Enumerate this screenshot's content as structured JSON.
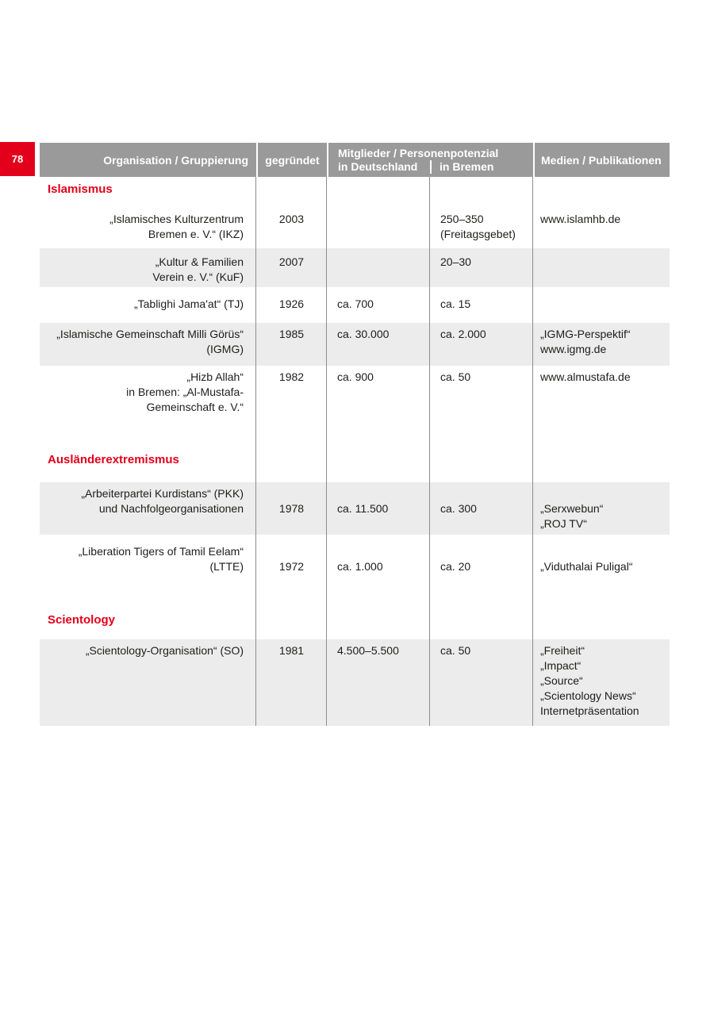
{
  "page_number": "78",
  "colors": {
    "accent_red": "#e3001b",
    "header_gray": "#9a9a9a",
    "row_shading": "#ececec",
    "body_text": "#1d1d1b"
  },
  "table": {
    "headers": {
      "organisation": "Organisation / Gruppierung",
      "founded": "gegründet",
      "members_group": "Mitglieder / Personenpotenzial",
      "members_germany": "in Deutschland",
      "members_bremen": "in Bremen",
      "media": "Medien / Publikationen"
    },
    "sections": [
      {
        "title": "Islamismus",
        "rows": [
          {
            "org": [
              "„Islamisches Kulturzentrum",
              "Bremen e. V.“ (IKZ)"
            ],
            "founded": "2003",
            "germany": "",
            "bremen": [
              "250–350",
              "(Freitagsgebet)"
            ],
            "media": [
              "www.islamhb.de"
            ]
          },
          {
            "org": [
              "„Kultur & Familien",
              "Verein e. V.“ (KuF)"
            ],
            "founded": "2007",
            "germany": "",
            "bremen": [
              "20–30"
            ],
            "media": []
          },
          {
            "org": [
              "„Tablighi Jama'at“ (TJ)"
            ],
            "founded": "1926",
            "germany": "ca. 700",
            "bremen": [
              "ca. 15"
            ],
            "media": []
          },
          {
            "org": [
              "„Islamische Gemeinschaft Milli Görüs“",
              "(IGMG)"
            ],
            "founded": "1985",
            "germany": "ca. 30.000",
            "bremen": [
              "ca. 2.000"
            ],
            "media": [
              "„IGMG-Perspektif“",
              "www.igmg.de"
            ]
          },
          {
            "org": [
              "„Hizb Allah“",
              "in Bremen: „Al-Mustafa-",
              "Gemeinschaft e. V.“"
            ],
            "founded": "1982",
            "germany": "ca. 900",
            "bremen": [
              "ca. 50"
            ],
            "media": [
              "www.almustafa.de"
            ]
          }
        ]
      },
      {
        "title": "Ausländerextremismus",
        "rows": [
          {
            "org": [
              "„Arbeiterpartei Kurdistans“ (PKK)",
              "und Nachfolgeorganisationen"
            ],
            "founded": "1978",
            "germany": "ca. 11.500",
            "bremen": [
              "ca. 300"
            ],
            "media": [
              "„Serxwebun“",
              "„ROJ TV“"
            ]
          },
          {
            "org": [
              "„Liberation Tigers of Tamil Eelam“",
              "(LTTE)"
            ],
            "founded": "1972",
            "germany": "ca. 1.000",
            "bremen": [
              "ca. 20"
            ],
            "media": [
              "„Viduthalai Puligal“"
            ]
          }
        ]
      },
      {
        "title": "Scientology",
        "rows": [
          {
            "org": [
              "„Scientology-Organisation“ (SO)"
            ],
            "founded": "1981",
            "germany": "4.500–5.500",
            "bremen": [
              "ca. 50"
            ],
            "media": [
              "„Freiheit“",
              "„Impact“",
              "„Source“",
              "„Scientology News“",
              "Internetpräsentation"
            ]
          }
        ]
      }
    ]
  }
}
